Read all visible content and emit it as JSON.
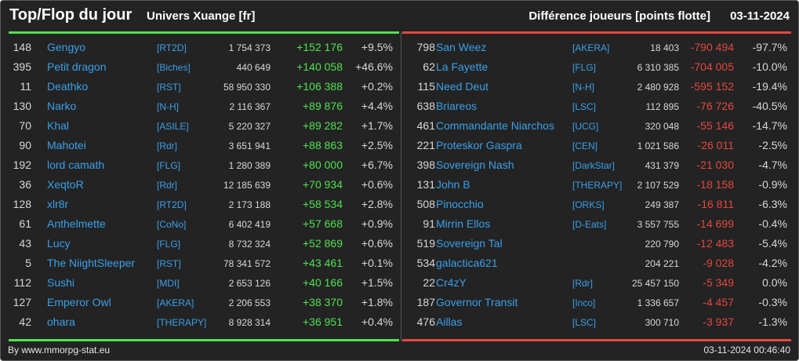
{
  "header": {
    "title": "Top/Flop du jour",
    "subtitle": "Univers Xuange [fr]",
    "metric_label": "Différence joueurs [points flotte]",
    "date": "03-11-2024"
  },
  "top": [
    {
      "rank": "148",
      "name": "Gengyo",
      "guild": "[RT2D]",
      "total": "1 754 373",
      "diff": "+152 176",
      "pct": "+9.5%"
    },
    {
      "rank": "395",
      "name": "Petit dragon",
      "guild": "[Biches]",
      "total": "440 649",
      "diff": "+140 058",
      "pct": "+46.6%"
    },
    {
      "rank": "11",
      "name": "Deathko",
      "guild": "[RST]",
      "total": "58 950 330",
      "diff": "+106 388",
      "pct": "+0.2%"
    },
    {
      "rank": "130",
      "name": "Narko",
      "guild": "[N-H]",
      "total": "2 116 367",
      "diff": "+89 876",
      "pct": "+4.4%"
    },
    {
      "rank": "70",
      "name": "Khal",
      "guild": "[ASILE]",
      "total": "5 220 327",
      "diff": "+89 282",
      "pct": "+1.7%"
    },
    {
      "rank": "90",
      "name": "Mahotei",
      "guild": "[Rdr]",
      "total": "3 651 941",
      "diff": "+88 863",
      "pct": "+2.5%"
    },
    {
      "rank": "192",
      "name": "lord camath",
      "guild": "[FLG]",
      "total": "1 280 389",
      "diff": "+80 000",
      "pct": "+6.7%"
    },
    {
      "rank": "36",
      "name": "XeqtoR",
      "guild": "[Rdr]",
      "total": "12 185 639",
      "diff": "+70 934",
      "pct": "+0.6%"
    },
    {
      "rank": "128",
      "name": "xlr8r",
      "guild": "[RT2D]",
      "total": "2 173 188",
      "diff": "+58 534",
      "pct": "+2.8%"
    },
    {
      "rank": "61",
      "name": "Anthelmette",
      "guild": "[CoNo]",
      "total": "6 402 419",
      "diff": "+57 668",
      "pct": "+0.9%"
    },
    {
      "rank": "43",
      "name": "Lucy",
      "guild": "[FLG]",
      "total": "8 732 324",
      "diff": "+52 869",
      "pct": "+0.6%"
    },
    {
      "rank": "5",
      "name": "The NiightSleeper",
      "guild": "[RST]",
      "total": "78 341 572",
      "diff": "+43 461",
      "pct": "+0.1%"
    },
    {
      "rank": "112",
      "name": "Sushi",
      "guild": "[MDI]",
      "total": "2 653 126",
      "diff": "+40 166",
      "pct": "+1.5%"
    },
    {
      "rank": "127",
      "name": "Emperor Owl",
      "guild": "[AKERA]",
      "total": "2 206 553",
      "diff": "+38 370",
      "pct": "+1.8%"
    },
    {
      "rank": "42",
      "name": "ohara",
      "guild": "[THERAPY]",
      "total": "8 928 314",
      "diff": "+36 951",
      "pct": "+0.4%"
    }
  ],
  "flop": [
    {
      "rank": "798",
      "name": "San Weez",
      "guild": "[AKERA]",
      "total": "18 403",
      "diff": "-790 494",
      "pct": "-97.7%"
    },
    {
      "rank": "62",
      "name": "La Fayette",
      "guild": "[FLG]",
      "total": "6 310 385",
      "diff": "-704 005",
      "pct": "-10.0%"
    },
    {
      "rank": "115",
      "name": "Need Deut",
      "guild": "[N-H]",
      "total": "2 480 928",
      "diff": "-595 152",
      "pct": "-19.4%"
    },
    {
      "rank": "638",
      "name": "Briareos",
      "guild": "[LSC]",
      "total": "112 895",
      "diff": "-76 726",
      "pct": "-40.5%"
    },
    {
      "rank": "461",
      "name": "Commandante Niarchos",
      "guild": "[UCG]",
      "total": "320 048",
      "diff": "-55 146",
      "pct": "-14.7%"
    },
    {
      "rank": "221",
      "name": "Proteskor Gaspra",
      "guild": "[CEN]",
      "total": "1 021 586",
      "diff": "-26 011",
      "pct": "-2.5%"
    },
    {
      "rank": "398",
      "name": "Sovereign Nash",
      "guild": "[DarkStar]",
      "total": "431 379",
      "diff": "-21 030",
      "pct": "-4.7%"
    },
    {
      "rank": "131",
      "name": "John B",
      "guild": "[THERAPY]",
      "total": "2 107 529",
      "diff": "-18 158",
      "pct": "-0.9%"
    },
    {
      "rank": "508",
      "name": "Pinocchio",
      "guild": "[ORKS]",
      "total": "249 387",
      "diff": "-16 811",
      "pct": "-6.3%"
    },
    {
      "rank": "91",
      "name": "Mirrin Ellos",
      "guild": "[D-Eats]",
      "total": "3 557 755",
      "diff": "-14 699",
      "pct": "-0.4%"
    },
    {
      "rank": "519",
      "name": "Sovereign Tal",
      "guild": "",
      "total": "220 790",
      "diff": "-12 483",
      "pct": "-5.4%"
    },
    {
      "rank": "534",
      "name": "galactica621",
      "guild": "",
      "total": "204 221",
      "diff": "-9 028",
      "pct": "-4.2%"
    },
    {
      "rank": "22",
      "name": "Cr4zY",
      "guild": "[Rdr]",
      "total": "25 457 150",
      "diff": "-5 349",
      "pct": "0.0%"
    },
    {
      "rank": "187",
      "name": "Governor Transit",
      "guild": "[Inco]",
      "total": "1 336 657",
      "diff": "-4 457",
      "pct": "-0.3%"
    },
    {
      "rank": "476",
      "name": "Aillas",
      "guild": "[LSC]",
      "total": "300 710",
      "diff": "-3 937",
      "pct": "-1.3%"
    }
  ],
  "footer": {
    "credit": "By www.mmorpg-stat.eu",
    "timestamp": "03-11-2024 00:46:40"
  },
  "colors": {
    "positive": "#4fe24f",
    "negative": "#e4473f",
    "link": "#3aa0ea",
    "background": "#232323"
  }
}
